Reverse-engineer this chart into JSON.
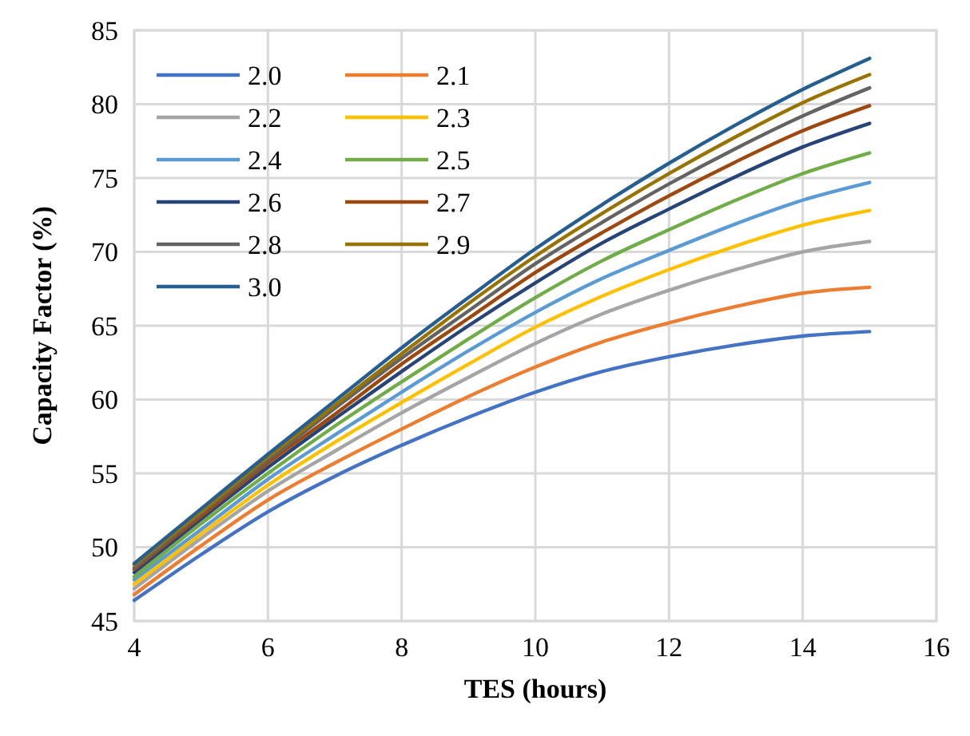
{
  "chart_data": {
    "type": "line",
    "xlabel": "TES (hours)",
    "ylabel": "Capacity Factor (%)",
    "x": [
      4,
      5,
      6,
      7,
      8,
      9,
      10,
      11,
      12,
      13,
      14,
      15
    ],
    "xlim": [
      4,
      16
    ],
    "xticks": [
      4,
      6,
      8,
      10,
      12,
      14,
      16
    ],
    "ylim": [
      45,
      85
    ],
    "yticks": [
      45,
      50,
      55,
      60,
      65,
      70,
      75,
      80,
      85
    ],
    "grid": true,
    "legend": "top left",
    "line_style": "solid",
    "marker": "none",
    "series": [
      {
        "name": "2.0",
        "color": "#4472c4",
        "values": [
          46.4,
          49.5,
          52.4,
          54.8,
          56.9,
          58.8,
          60.5,
          61.9,
          62.9,
          63.7,
          64.3,
          64.6
        ]
      },
      {
        "name": "2.1",
        "color": "#ed7d31",
        "values": [
          46.8,
          50.1,
          53.2,
          55.7,
          58.0,
          60.2,
          62.2,
          63.9,
          65.2,
          66.3,
          67.2,
          67.6
        ]
      },
      {
        "name": "2.2",
        "color": "#a5a5a5",
        "values": [
          47.2,
          50.6,
          53.8,
          56.5,
          59.1,
          61.5,
          63.8,
          65.8,
          67.4,
          68.8,
          70.0,
          70.7
        ]
      },
      {
        "name": "2.3",
        "color": "#ffc000",
        "values": [
          47.5,
          50.9,
          54.2,
          57.1,
          59.8,
          62.4,
          64.9,
          67.0,
          68.8,
          70.4,
          71.8,
          72.8
        ]
      },
      {
        "name": "2.4",
        "color": "#5b9bd5",
        "values": [
          47.8,
          51.2,
          54.6,
          57.6,
          60.5,
          63.3,
          65.9,
          68.2,
          70.1,
          71.9,
          73.5,
          74.7
        ]
      },
      {
        "name": "2.5",
        "color": "#70ad47",
        "values": [
          48.0,
          51.6,
          55.0,
          58.2,
          61.2,
          64.1,
          66.9,
          69.4,
          71.5,
          73.5,
          75.3,
          76.7
        ]
      },
      {
        "name": "2.6",
        "color": "#264478",
        "values": [
          48.3,
          51.9,
          55.4,
          58.7,
          61.9,
          65.0,
          67.9,
          70.6,
          72.9,
          75.1,
          77.1,
          78.7
        ]
      },
      {
        "name": "2.7",
        "color": "#9e480e",
        "values": [
          48.5,
          52.1,
          55.7,
          59.0,
          62.4,
          65.5,
          68.6,
          71.3,
          73.8,
          76.1,
          78.2,
          79.9
        ]
      },
      {
        "name": "2.8",
        "color": "#636363",
        "values": [
          48.6,
          52.3,
          55.9,
          59.4,
          62.8,
          66.0,
          69.2,
          72.0,
          74.6,
          77.0,
          79.2,
          81.1
        ]
      },
      {
        "name": "2.9",
        "color": "#997300",
        "values": [
          48.8,
          52.4,
          56.1,
          59.6,
          63.1,
          66.5,
          69.7,
          72.6,
          75.3,
          77.8,
          80.1,
          82.0
        ]
      },
      {
        "name": "3.0",
        "color": "#255e91",
        "values": [
          48.9,
          52.6,
          56.3,
          59.9,
          63.5,
          66.9,
          70.2,
          73.2,
          76.0,
          78.6,
          81.0,
          83.1
        ]
      }
    ]
  }
}
